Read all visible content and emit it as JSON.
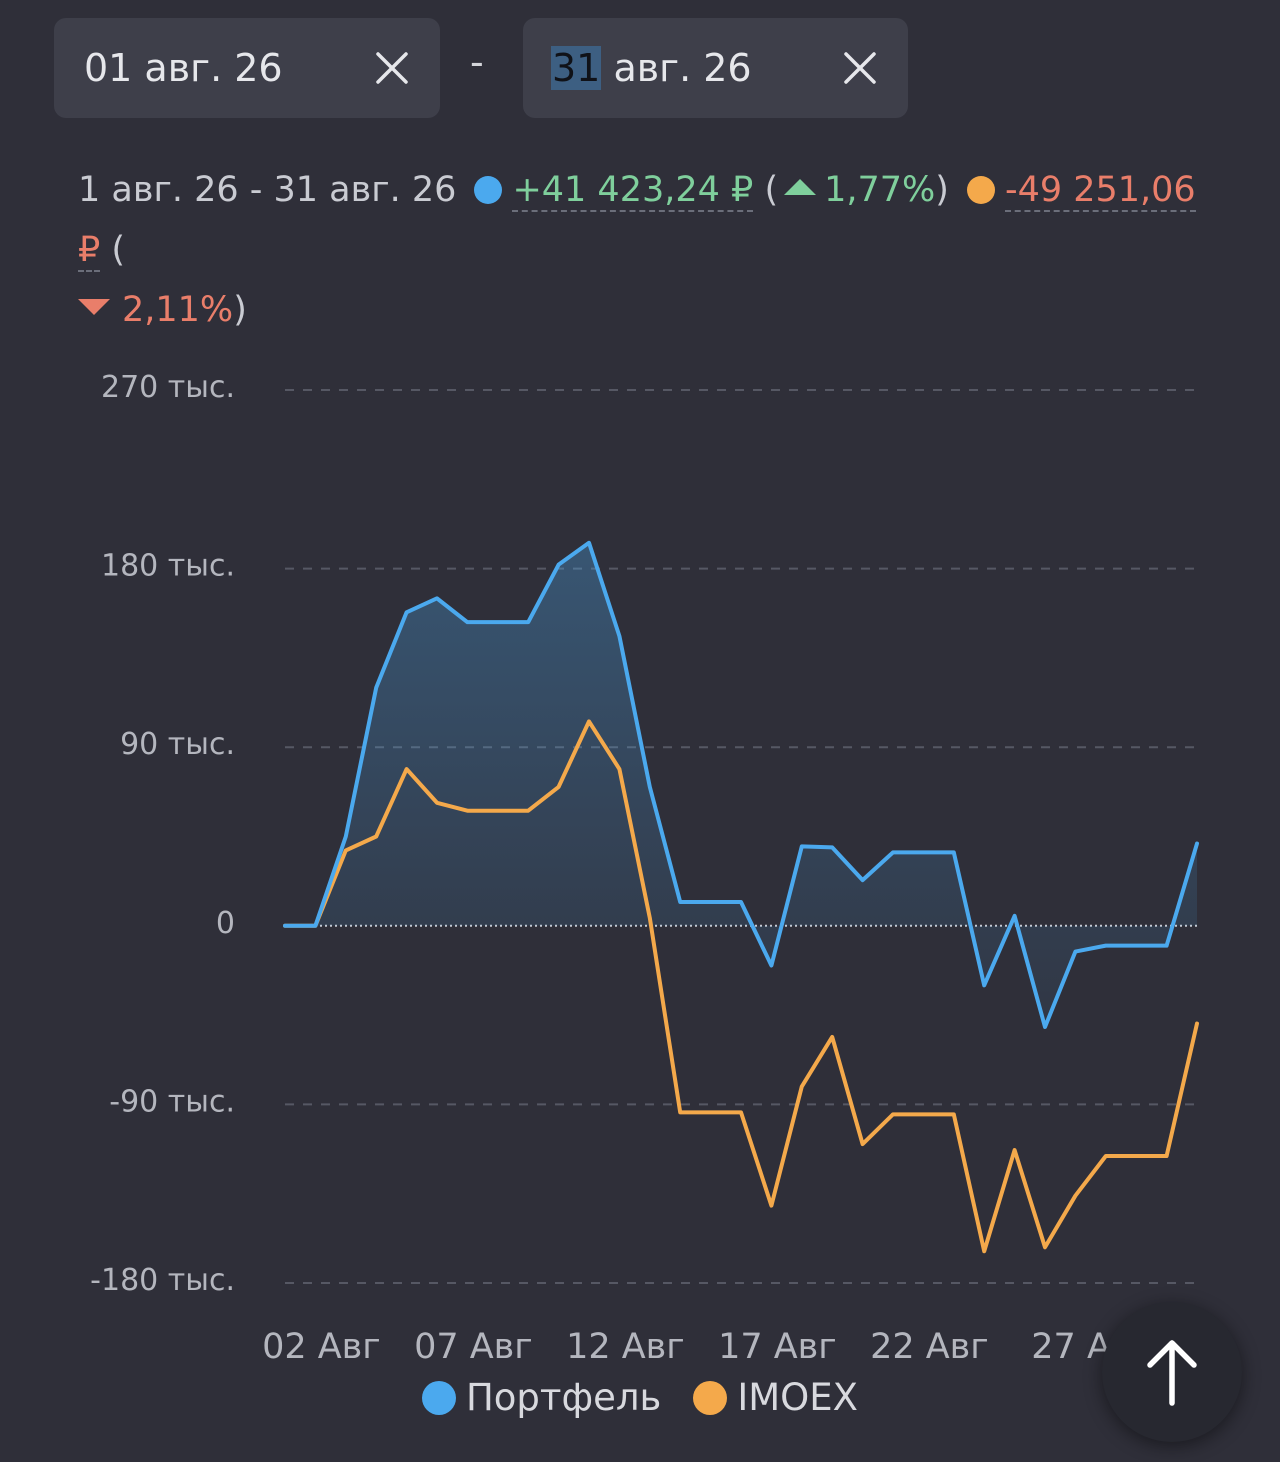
{
  "date_range": {
    "from": {
      "value": "01 авг. 26"
    },
    "to": {
      "day": "31",
      "rest": " авг. 26"
    },
    "separator": "-"
  },
  "summary": {
    "period": "1 авг. 26 - 31 авг. 26",
    "portfolio_change": "+41 423,24 ₽",
    "portfolio_percent": "1,77%",
    "index_change": "-49 251,06 ₽",
    "index_percent": "2,11%",
    "open_paren": "(",
    "close_paren": ")"
  },
  "colors": {
    "portfolio": "#4ba9ee",
    "index": "#f4a94b",
    "positive": "#7fcf9c",
    "negative": "#e97e6a"
  },
  "chart_data": {
    "type": "line",
    "x_tick_labels": [
      "02 Авг",
      "07 Авг",
      "12 Авг",
      "17 Авг",
      "22 Авг",
      "27 Ав"
    ],
    "x_tick_days": [
      2,
      7,
      12,
      17,
      22,
      27
    ],
    "y_tick_labels": [
      "270 тыс.",
      "180 тыс.",
      "90 тыс.",
      "0",
      "-90 тыс.",
      "-180 тыс."
    ],
    "y_tick_values": [
      270000,
      180000,
      90000,
      0,
      -90000,
      -180000
    ],
    "ylim": [
      -180000,
      270000
    ],
    "xlim": [
      1,
      31
    ],
    "grid": true,
    "legend_position": "bottom",
    "x": [
      1,
      2,
      3,
      4,
      5,
      6,
      7,
      8,
      9,
      10,
      11,
      12,
      13,
      14,
      15,
      16,
      17,
      18,
      19,
      20,
      21,
      22,
      23,
      24,
      25,
      26,
      27,
      28,
      29,
      30,
      31
    ],
    "series": [
      {
        "name": "Портфель",
        "color": "#4ba9ee",
        "fill": true,
        "values": [
          0,
          0,
          45000,
          120000,
          158000,
          165000,
          153000,
          153000,
          153000,
          182000,
          193000,
          146000,
          70000,
          12000,
          12000,
          12000,
          -20000,
          40000,
          39500,
          23000,
          37000,
          37000,
          37000,
          -30000,
          5000,
          -51000,
          -13000,
          -10000,
          -10000,
          -10000,
          41423
        ]
      },
      {
        "name": "IMOEX",
        "color": "#f4a94b",
        "fill": false,
        "values": [
          0,
          0,
          38000,
          45000,
          79000,
          62000,
          58000,
          58000,
          58000,
          70000,
          103000,
          79000,
          4000,
          -94000,
          -94000,
          -94000,
          -141000,
          -81000,
          -56000,
          -110000,
          -95000,
          -95000,
          -95000,
          -164000,
          -113000,
          -162000,
          -136000,
          -116000,
          -116000,
          -116000,
          -49251
        ]
      }
    ]
  },
  "legend": {
    "portfolio_label": "Портфель",
    "index_label": "IMOEX"
  },
  "icons": {
    "clear": "close-icon",
    "scroll_top": "arrow-up-icon"
  }
}
